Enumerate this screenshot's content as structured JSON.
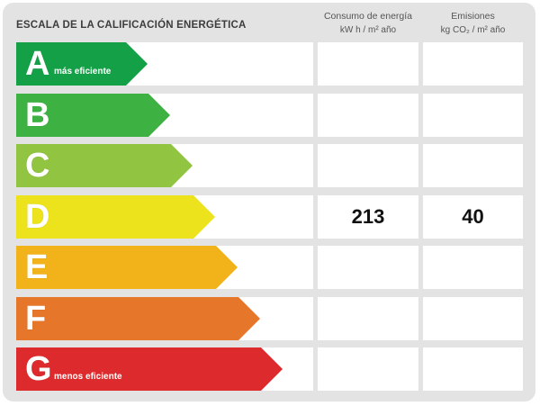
{
  "header": {
    "title": "ESCALA DE LA CALIFICACIÓN ENERGÉTICA",
    "consumo_line1": "Consumo de energía",
    "consumo_line2": "kW h  / m² año",
    "emisiones_line1": "Emisiones",
    "emisiones_line2": "kg CO₂  / m² año"
  },
  "ratings": [
    {
      "letter": "A",
      "tag": "más eficiente",
      "color": "#14a046"
    },
    {
      "letter": "B",
      "tag": "",
      "color": "#3db142"
    },
    {
      "letter": "C",
      "tag": "",
      "color": "#91c441"
    },
    {
      "letter": "D",
      "tag": "",
      "color": "#ece31d"
    },
    {
      "letter": "E",
      "tag": "",
      "color": "#f2b219"
    },
    {
      "letter": "F",
      "tag": "",
      "color": "#e6762a"
    },
    {
      "letter": "G",
      "tag": "menos eficiente",
      "color": "#dd2b2d"
    }
  ],
  "current_rating": {
    "letter": "D",
    "consumo": "213",
    "emisiones": "40"
  }
}
